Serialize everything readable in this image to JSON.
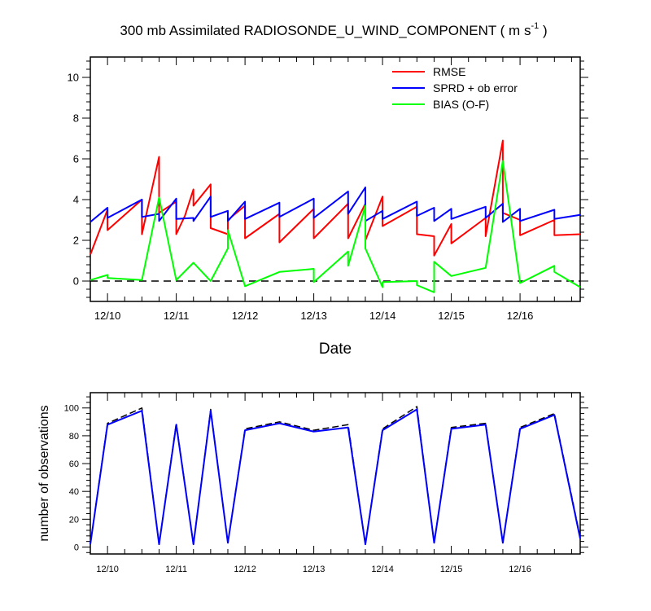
{
  "figure": {
    "title_main": "300 mb Assimilated RADIOSONDE_U_WIND_COMPONENT ( m s",
    "title_unit_exp": "-1",
    "title_close": " )"
  },
  "chart_data": [
    {
      "type": "line",
      "title": "300 mb Assimilated RADIOSONDE_U_WIND_COMPONENT ( m s-1 )",
      "xlabel": "Date",
      "ylabel": "",
      "xlim": [
        "2013-12-09T18:00",
        "2013-12-16T21:00"
      ],
      "ylim": [
        -1,
        11
      ],
      "yticks": [
        0,
        2,
        4,
        6,
        8,
        10
      ],
      "xticks": [
        "12/10",
        "12/11",
        "12/12",
        "12/13",
        "12/14",
        "12/15",
        "12/16"
      ],
      "grid": false,
      "legend_position": "top-right",
      "reference_line": {
        "y": 0,
        "style": "dashed",
        "color": "#000000"
      },
      "series": [
        {
          "name": "RMSE",
          "color": "#ff0000",
          "points": [
            [
              "2013-12-09T18:00",
              1.3
            ],
            [
              "2013-12-10T00:00",
              3.5
            ],
            [
              "2013-12-10T00:00",
              2.5
            ],
            [
              "2013-12-10T12:00",
              4.0
            ],
            [
              "2013-12-10T12:00",
              2.3
            ],
            [
              "2013-12-10T18:00",
              6.1
            ],
            [
              "2013-12-10T18:00",
              3.35
            ],
            [
              "2013-12-11T00:00",
              3.9
            ],
            [
              "2013-12-11T00:00",
              2.3
            ],
            [
              "2013-12-11T03:00",
              3.2
            ],
            [
              "2013-12-11T06:00",
              4.5
            ],
            [
              "2013-12-11T06:00",
              3.7
            ],
            [
              "2013-12-11T12:00",
              4.75
            ],
            [
              "2013-12-11T12:00",
              2.6
            ],
            [
              "2013-12-11T18:00",
              2.3
            ],
            [
              "2013-12-11T18:00",
              3.0
            ],
            [
              "2013-12-12T00:00",
              3.7
            ],
            [
              "2013-12-12T00:00",
              2.1
            ],
            [
              "2013-12-12T12:00",
              3.3
            ],
            [
              "2013-12-12T12:00",
              1.9
            ],
            [
              "2013-12-13T00:00",
              3.55
            ],
            [
              "2013-12-13T00:00",
              2.1
            ],
            [
              "2013-12-13T12:00",
              3.8
            ],
            [
              "2013-12-13T12:00",
              2.1
            ],
            [
              "2013-12-13T18:00",
              3.8
            ],
            [
              "2013-12-13T18:00",
              2.0
            ],
            [
              "2013-12-14T00:00",
              4.15
            ],
            [
              "2013-12-14T00:00",
              2.7
            ],
            [
              "2013-12-14T12:00",
              3.65
            ],
            [
              "2013-12-14T12:00",
              2.3
            ],
            [
              "2013-12-14T18:00",
              2.2
            ],
            [
              "2013-12-14T18:00",
              1.25
            ],
            [
              "2013-12-15T00:00",
              2.8
            ],
            [
              "2013-12-15T00:00",
              1.85
            ],
            [
              "2013-12-15T12:00",
              3.1
            ],
            [
              "2013-12-15T12:00",
              2.2
            ],
            [
              "2013-12-15T18:00",
              6.9
            ],
            [
              "2013-12-15T18:00",
              3.35
            ],
            [
              "2013-12-16T00:00",
              3.0
            ],
            [
              "2013-12-16T00:00",
              2.25
            ],
            [
              "2013-12-16T12:00",
              3.0
            ],
            [
              "2013-12-16T12:00",
              2.25
            ],
            [
              "2013-12-16T21:00",
              2.3
            ]
          ]
        },
        {
          "name": "SPRD + ob error",
          "color": "#0000ff",
          "points": [
            [
              "2013-12-09T18:00",
              2.9
            ],
            [
              "2013-12-10T00:00",
              3.6
            ],
            [
              "2013-12-10T00:00",
              3.1
            ],
            [
              "2013-12-10T12:00",
              4.0
            ],
            [
              "2013-12-10T12:00",
              3.15
            ],
            [
              "2013-12-10T18:00",
              3.3
            ],
            [
              "2013-12-10T18:00",
              2.95
            ],
            [
              "2013-12-11T00:00",
              4.05
            ],
            [
              "2013-12-11T00:00",
              3.05
            ],
            [
              "2013-12-11T06:00",
              3.1
            ],
            [
              "2013-12-11T06:00",
              2.95
            ],
            [
              "2013-12-11T12:00",
              4.15
            ],
            [
              "2013-12-11T12:00",
              3.15
            ],
            [
              "2013-12-11T18:00",
              3.45
            ],
            [
              "2013-12-11T18:00",
              2.95
            ],
            [
              "2013-12-12T00:00",
              3.9
            ],
            [
              "2013-12-12T00:00",
              3.05
            ],
            [
              "2013-12-12T12:00",
              3.85
            ],
            [
              "2013-12-12T12:00",
              3.15
            ],
            [
              "2013-12-13T00:00",
              4.05
            ],
            [
              "2013-12-13T00:00",
              3.1
            ],
            [
              "2013-12-13T12:00",
              4.4
            ],
            [
              "2013-12-13T12:00",
              3.3
            ],
            [
              "2013-12-13T18:00",
              4.6
            ],
            [
              "2013-12-13T18:00",
              2.95
            ],
            [
              "2013-12-14T00:00",
              3.45
            ],
            [
              "2013-12-14T00:00",
              3.05
            ],
            [
              "2013-12-14T12:00",
              3.9
            ],
            [
              "2013-12-14T12:00",
              3.2
            ],
            [
              "2013-12-14T18:00",
              3.6
            ],
            [
              "2013-12-14T18:00",
              2.95
            ],
            [
              "2013-12-15T00:00",
              3.55
            ],
            [
              "2013-12-15T00:00",
              3.05
            ],
            [
              "2013-12-15T12:00",
              3.65
            ],
            [
              "2013-12-15T12:00",
              3.1
            ],
            [
              "2013-12-15T18:00",
              3.8
            ],
            [
              "2013-12-15T18:00",
              2.9
            ],
            [
              "2013-12-16T00:00",
              3.55
            ],
            [
              "2013-12-16T00:00",
              2.95
            ],
            [
              "2013-12-16T12:00",
              3.5
            ],
            [
              "2013-12-16T12:00",
              3.05
            ],
            [
              "2013-12-16T21:00",
              3.25
            ]
          ]
        },
        {
          "name": "BIAS (O-F)",
          "color": "#00ff00",
          "points": [
            [
              "2013-12-09T18:00",
              0.05
            ],
            [
              "2013-12-10T00:00",
              0.3
            ],
            [
              "2013-12-10T00:00",
              0.15
            ],
            [
              "2013-12-10T12:00",
              0.05
            ],
            [
              "2013-12-10T18:00",
              4.1
            ],
            [
              "2013-12-11T00:00",
              0.05
            ],
            [
              "2013-12-11T06:00",
              0.9
            ],
            [
              "2013-12-11T12:00",
              0.0
            ],
            [
              "2013-12-11T18:00",
              1.6
            ],
            [
              "2013-12-11T18:00",
              2.5
            ],
            [
              "2013-12-12T00:00",
              -0.25
            ],
            [
              "2013-12-12T12:00",
              0.45
            ],
            [
              "2013-12-13T00:00",
              0.6
            ],
            [
              "2013-12-13T00:00",
              -0.05
            ],
            [
              "2013-12-13T12:00",
              1.45
            ],
            [
              "2013-12-13T12:00",
              0.75
            ],
            [
              "2013-12-13T18:00",
              3.7
            ],
            [
              "2013-12-13T18:00",
              1.6
            ],
            [
              "2013-12-14T00:00",
              -0.3
            ],
            [
              "2013-12-14T00:00",
              -0.05
            ],
            [
              "2013-12-14T12:00",
              0.0
            ],
            [
              "2013-12-14T12:00",
              -0.2
            ],
            [
              "2013-12-14T18:00",
              -0.55
            ],
            [
              "2013-12-14T18:00",
              0.95
            ],
            [
              "2013-12-15T00:00",
              0.25
            ],
            [
              "2013-12-15T12:00",
              0.65
            ],
            [
              "2013-12-15T18:00",
              5.9
            ],
            [
              "2013-12-16T00:00",
              -0.1
            ],
            [
              "2013-12-16T12:00",
              0.75
            ],
            [
              "2013-12-16T12:00",
              0.45
            ],
            [
              "2013-12-16T21:00",
              -0.3
            ]
          ]
        }
      ]
    },
    {
      "type": "line",
      "title": "",
      "xlabel": "",
      "ylabel": "number of observations",
      "xlim": [
        "2013-12-09T18:00",
        "2013-12-16T21:00"
      ],
      "ylim": [
        -5,
        111
      ],
      "yticks": [
        0,
        20,
        40,
        60,
        80,
        100
      ],
      "xticks": [
        "12/10",
        "12/11",
        "12/12",
        "12/13",
        "12/14",
        "12/15",
        "12/16"
      ],
      "grid": false,
      "series": [
        {
          "color": "#000000",
          "dash": true,
          "points": [
            [
              "2013-12-09T18:00",
              2
            ],
            [
              "2013-12-10T00:00",
              89
            ],
            [
              "2013-12-10T12:00",
              100
            ],
            [
              "2013-12-10T18:00",
              2
            ],
            [
              "2013-12-11T00:00",
              89
            ],
            [
              "2013-12-11T06:00",
              2
            ],
            [
              "2013-12-11T12:00",
              99
            ],
            [
              "2013-12-11T18:00",
              3
            ],
            [
              "2013-12-12T00:00",
              85
            ],
            [
              "2013-12-12T12:00",
              90
            ],
            [
              "2013-12-13T00:00",
              84
            ],
            [
              "2013-12-13T12:00",
              88
            ],
            [
              "2013-12-13T18:00",
              2
            ],
            [
              "2013-12-14T00:00",
              85
            ],
            [
              "2013-12-14T12:00",
              101
            ],
            [
              "2013-12-14T18:00",
              3
            ],
            [
              "2013-12-15T00:00",
              86
            ],
            [
              "2013-12-15T12:00",
              89
            ],
            [
              "2013-12-15T18:00",
              3
            ],
            [
              "2013-12-16T00:00",
              86
            ],
            [
              "2013-12-16T12:00",
              96
            ],
            [
              "2013-12-16T21:00",
              7
            ]
          ]
        },
        {
          "color": "#0000ff",
          "dash": false,
          "points": [
            [
              "2013-12-09T18:00",
              2
            ],
            [
              "2013-12-10T00:00",
              88
            ],
            [
              "2013-12-10T12:00",
              98
            ],
            [
              "2013-12-10T18:00",
              2
            ],
            [
              "2013-12-11T00:00",
              88
            ],
            [
              "2013-12-11T06:00",
              2
            ],
            [
              "2013-12-11T12:00",
              98
            ],
            [
              "2013-12-11T18:00",
              3
            ],
            [
              "2013-12-12T00:00",
              84
            ],
            [
              "2013-12-12T12:00",
              89
            ],
            [
              "2013-12-13T00:00",
              83
            ],
            [
              "2013-12-13T12:00",
              86
            ],
            [
              "2013-12-13T18:00",
              2
            ],
            [
              "2013-12-14T00:00",
              84
            ],
            [
              "2013-12-14T12:00",
              99
            ],
            [
              "2013-12-14T18:00",
              3
            ],
            [
              "2013-12-15T00:00",
              85
            ],
            [
              "2013-12-15T12:00",
              88
            ],
            [
              "2013-12-15T18:00",
              3
            ],
            [
              "2013-12-16T00:00",
              85
            ],
            [
              "2013-12-16T12:00",
              95
            ],
            [
              "2013-12-16T21:00",
              6
            ]
          ]
        }
      ]
    }
  ]
}
